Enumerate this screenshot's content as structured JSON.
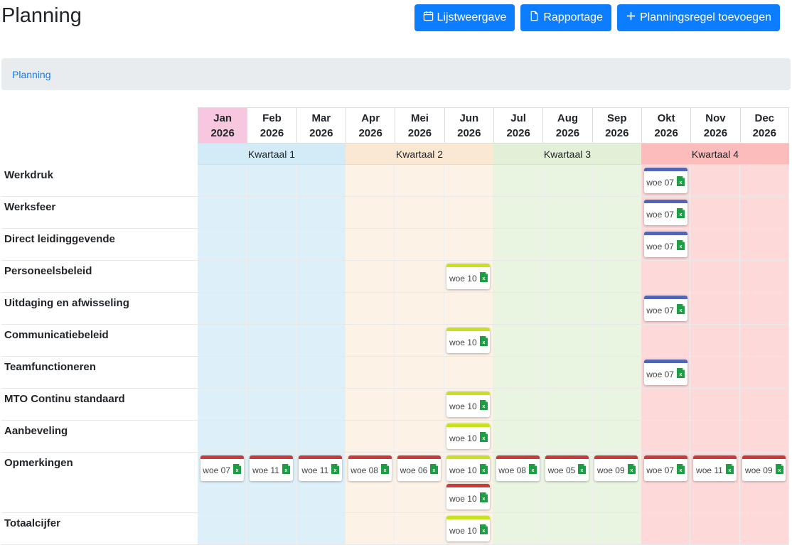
{
  "title": "Planning",
  "toolbar": {
    "list_view": "Lijstweergave",
    "report": "Rapportage",
    "add_rule": "Planningsregel toevoegen"
  },
  "breadcrumb": {
    "current": "Planning"
  },
  "months": [
    {
      "m": "Jan",
      "y": "2026"
    },
    {
      "m": "Feb",
      "y": "2026"
    },
    {
      "m": "Mar",
      "y": "2026"
    },
    {
      "m": "Apr",
      "y": "2026"
    },
    {
      "m": "Mei",
      "y": "2026"
    },
    {
      "m": "Jun",
      "y": "2026"
    },
    {
      "m": "Jul",
      "y": "2026"
    },
    {
      "m": "Aug",
      "y": "2026"
    },
    {
      "m": "Sep",
      "y": "2026"
    },
    {
      "m": "Okt",
      "y": "2026"
    },
    {
      "m": "Nov",
      "y": "2026"
    },
    {
      "m": "Dec",
      "y": "2026"
    }
  ],
  "quarters": [
    "Kwartaal 1",
    "Kwartaal 2",
    "Kwartaal 3",
    "Kwartaal 4"
  ],
  "colors": {
    "blue_bar": "#5266b4",
    "green_bar": "#c6e024",
    "red_bar": "#c63b3b",
    "primary": "#0d7dff",
    "excel": "#1f9d45"
  },
  "rows": [
    {
      "label": "Werkdruk",
      "items": [
        {
          "month": 9,
          "text": "woe 07",
          "bar": "blue_bar"
        }
      ]
    },
    {
      "label": "Werksfeer",
      "items": [
        {
          "month": 9,
          "text": "woe 07",
          "bar": "blue_bar"
        }
      ]
    },
    {
      "label": "Direct leidinggevende",
      "items": [
        {
          "month": 9,
          "text": "woe 07",
          "bar": "blue_bar"
        }
      ]
    },
    {
      "label": "Personeelsbeleid",
      "items": [
        {
          "month": 5,
          "text": "woe 10",
          "bar": "green_bar"
        }
      ]
    },
    {
      "label": "Uitdaging en afwisseling",
      "items": [
        {
          "month": 9,
          "text": "woe 07",
          "bar": "blue_bar"
        }
      ]
    },
    {
      "label": "Communicatiebeleid",
      "items": [
        {
          "month": 5,
          "text": "woe 10",
          "bar": "green_bar"
        }
      ]
    },
    {
      "label": "Teamfunctioneren",
      "items": [
        {
          "month": 9,
          "text": "woe 07",
          "bar": "blue_bar"
        }
      ]
    },
    {
      "label": "MTO Continu standaard",
      "items": [
        {
          "month": 5,
          "text": "woe 10",
          "bar": "green_bar"
        }
      ]
    },
    {
      "label": "Aanbeveling",
      "items": [
        {
          "month": 5,
          "text": "woe 10",
          "bar": "green_bar"
        }
      ]
    },
    {
      "label": "Opmerkingen",
      "items": [
        {
          "month": 0,
          "text": "woe 07",
          "bar": "red_bar"
        },
        {
          "month": 1,
          "text": "woe 11",
          "bar": "red_bar"
        },
        {
          "month": 2,
          "text": "woe 11",
          "bar": "red_bar"
        },
        {
          "month": 3,
          "text": "woe 08",
          "bar": "red_bar"
        },
        {
          "month": 4,
          "text": "woe 06",
          "bar": "red_bar"
        },
        {
          "month": 5,
          "text": "woe 10",
          "bar": "green_bar"
        },
        {
          "month": 5,
          "text": "woe 10",
          "bar": "red_bar"
        },
        {
          "month": 6,
          "text": "woe 08",
          "bar": "red_bar"
        },
        {
          "month": 7,
          "text": "woe 05",
          "bar": "red_bar"
        },
        {
          "month": 8,
          "text": "woe 09",
          "bar": "red_bar"
        },
        {
          "month": 9,
          "text": "woe 07",
          "bar": "red_bar"
        },
        {
          "month": 10,
          "text": "woe 11",
          "bar": "red_bar"
        },
        {
          "month": 11,
          "text": "woe 09",
          "bar": "red_bar"
        }
      ]
    },
    {
      "label": "Totaalcijfer",
      "items": [
        {
          "month": 5,
          "text": "woe 10",
          "bar": "green_bar"
        }
      ]
    }
  ]
}
